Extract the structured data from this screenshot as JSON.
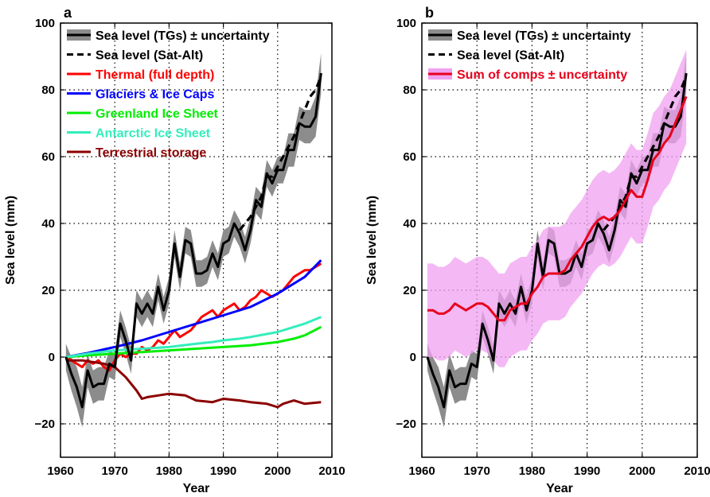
{
  "chart_data": [
    {
      "type": "line",
      "panel_label": "a",
      "xlabel": "Year",
      "ylabel": "Sea level (mm)",
      "xlim": [
        1960,
        2010
      ],
      "ylim": [
        -30,
        100
      ],
      "xticks": [
        1960,
        1970,
        1980,
        1990,
        2000,
        2010
      ],
      "yticks": [
        -20,
        0,
        20,
        40,
        60,
        80,
        100
      ],
      "grid": true,
      "legend_position": "top-left",
      "series": [
        {
          "name": "Sea level (TGs) ± uncertainty",
          "color": "#000000",
          "band_color": "#8c8c8c",
          "style": "solid",
          "x": [
            1961,
            1962,
            1963,
            1964,
            1965,
            1966,
            1967,
            1968,
            1969,
            1970,
            1971,
            1972,
            1973,
            1974,
            1975,
            1976,
            1977,
            1978,
            1979,
            1980,
            1981,
            1982,
            1983,
            1984,
            1985,
            1986,
            1987,
            1988,
            1989,
            1990,
            1991,
            1992,
            1993,
            1994,
            1995,
            1996,
            1997,
            1998,
            1999,
            2000,
            2001,
            2002,
            2003,
            2004,
            2005,
            2006,
            2007,
            2008
          ],
          "values": [
            0,
            -5,
            -9,
            -15,
            -4,
            -9,
            -8,
            -8,
            -2,
            -3,
            10,
            5,
            -1,
            16,
            13,
            16,
            13,
            21,
            14,
            20,
            34,
            24,
            35,
            34,
            25,
            25,
            26,
            31,
            27,
            34,
            35,
            40,
            37,
            32,
            38,
            47,
            45,
            55,
            52,
            56,
            56,
            62,
            62,
            70,
            69,
            69,
            72,
            85
          ],
          "uncertainty": [
            4,
            5,
            6,
            6,
            5,
            5,
            5,
            5,
            4,
            4,
            4,
            4,
            4,
            4,
            4,
            4,
            4,
            4,
            4,
            4,
            4,
            4,
            4,
            4,
            4,
            4,
            4,
            4,
            4,
            4,
            4,
            4,
            4,
            4,
            4,
            4,
            4,
            4,
            4,
            4,
            4,
            5,
            5,
            5,
            5,
            5,
            6,
            6
          ]
        },
        {
          "name": "Sea level (Sat-Alt)",
          "color": "#000000",
          "style": "dashed",
          "x": [
            1993,
            1994,
            1995,
            1996,
            1997,
            1998,
            1999,
            2000,
            2001,
            2002,
            2003,
            2004,
            2005,
            2006,
            2007,
            2008
          ],
          "values": [
            38,
            40,
            42,
            45,
            48,
            54,
            54,
            57,
            60,
            63,
            66,
            70,
            74,
            78,
            80,
            84
          ]
        },
        {
          "name": "Thermal (full depth)",
          "color": "#ff0000",
          "style": "solid",
          "x": [
            1961,
            1962,
            1963,
            1964,
            1965,
            1966,
            1967,
            1968,
            1969,
            1970,
            1971,
            1972,
            1973,
            1974,
            1975,
            1976,
            1977,
            1978,
            1979,
            1980,
            1981,
            1982,
            1983,
            1984,
            1985,
            1986,
            1987,
            1988,
            1989,
            1990,
            1991,
            1992,
            1993,
            1994,
            1995,
            1996,
            1997,
            1998,
            1999,
            2000,
            2001,
            2002,
            2003,
            2004,
            2005,
            2006,
            2007,
            2008
          ],
          "values": [
            0,
            -1,
            -2,
            -3,
            -1,
            -2,
            -1,
            -3,
            -4,
            -1,
            1,
            0,
            1,
            1,
            3,
            2,
            3,
            5,
            4,
            6,
            8,
            6,
            7,
            8,
            10,
            12,
            13,
            14,
            12,
            14,
            15,
            16,
            14,
            15,
            17,
            18,
            20,
            19,
            18,
            19,
            20,
            22,
            24,
            25,
            26,
            26,
            27,
            28
          ]
        },
        {
          "name": "Glaciers & Ice Caps",
          "color": "#0000ff",
          "style": "solid",
          "x": [
            1961,
            1965,
            1970,
            1975,
            1980,
            1985,
            1990,
            1995,
            2000,
            2005,
            2008
          ],
          "values": [
            0,
            1.2,
            3,
            5,
            7.5,
            10,
            12.5,
            15,
            19,
            24,
            29
          ]
        },
        {
          "name": "Greenland Ice Sheet",
          "color": "#00ee00",
          "style": "solid",
          "x": [
            1961,
            1965,
            1970,
            1975,
            1980,
            1985,
            1990,
            1995,
            2000,
            2003,
            2005,
            2008
          ],
          "values": [
            0,
            0.5,
            1,
            1.5,
            2,
            2.5,
            3,
            3.5,
            4.5,
            5.5,
            6.5,
            9
          ]
        },
        {
          "name": "Antarctic Ice Sheet",
          "color": "#33eebb",
          "style": "solid",
          "x": [
            1961,
            1965,
            1970,
            1975,
            1980,
            1985,
            1988,
            1990,
            1993,
            1995,
            2000,
            2003,
            2005,
            2008
          ],
          "values": [
            0,
            1,
            2,
            2.5,
            3,
            4,
            4.5,
            5,
            5.5,
            6,
            7.5,
            9,
            10,
            12
          ]
        },
        {
          "name": "Terrestrial storage",
          "color": "#8b0000",
          "style": "solid",
          "x": [
            1961,
            1964,
            1966,
            1968,
            1970,
            1972,
            1974,
            1975,
            1976,
            1978,
            1980,
            1983,
            1985,
            1988,
            1990,
            1993,
            1995,
            1998,
            2000,
            2001,
            2003,
            2005,
            2008
          ],
          "values": [
            -1,
            -1,
            -1.5,
            -2,
            -3,
            -6,
            -10,
            -12.5,
            -12,
            -11.5,
            -11,
            -11.5,
            -13,
            -13.5,
            -12.5,
            -13,
            -13.5,
            -14,
            -15,
            -14,
            -13,
            -14,
            -13.5
          ]
        }
      ]
    },
    {
      "type": "line",
      "panel_label": "b",
      "xlabel": "Year",
      "ylabel": "Sea level (mm)",
      "xlim": [
        1960,
        2010
      ],
      "ylim": [
        -30,
        100
      ],
      "xticks": [
        1960,
        1970,
        1980,
        1990,
        2000,
        2010
      ],
      "yticks": [
        -20,
        0,
        20,
        40,
        60,
        80,
        100
      ],
      "grid": true,
      "legend_position": "top-left",
      "series": [
        {
          "name": "Sea level (TGs) ± uncertainty",
          "color": "#000000",
          "band_color": "#8c8c8c",
          "style": "solid",
          "x": [
            1961,
            1962,
            1963,
            1964,
            1965,
            1966,
            1967,
            1968,
            1969,
            1970,
            1971,
            1972,
            1973,
            1974,
            1975,
            1976,
            1977,
            1978,
            1979,
            1980,
            1981,
            1982,
            1983,
            1984,
            1985,
            1986,
            1987,
            1988,
            1989,
            1990,
            1991,
            1992,
            1993,
            1994,
            1995,
            1996,
            1997,
            1998,
            1999,
            2000,
            2001,
            2002,
            2003,
            2004,
            2005,
            2006,
            2007,
            2008
          ],
          "values": [
            0,
            -5,
            -9,
            -15,
            -4,
            -9,
            -8,
            -8,
            -2,
            -3,
            10,
            5,
            -1,
            16,
            13,
            16,
            13,
            21,
            14,
            20,
            34,
            24,
            35,
            34,
            25,
            25,
            26,
            31,
            27,
            34,
            35,
            40,
            37,
            32,
            38,
            47,
            45,
            55,
            52,
            56,
            56,
            62,
            62,
            70,
            69,
            69,
            72,
            85
          ],
          "uncertainty": [
            4,
            5,
            6,
            6,
            5,
            5,
            5,
            5,
            4,
            4,
            4,
            4,
            4,
            4,
            4,
            4,
            4,
            4,
            4,
            4,
            4,
            4,
            4,
            4,
            4,
            4,
            4,
            4,
            4,
            4,
            4,
            4,
            4,
            4,
            4,
            4,
            4,
            4,
            4,
            4,
            4,
            5,
            5,
            5,
            5,
            5,
            6,
            6
          ]
        },
        {
          "name": "Sea level (Sat-Alt)",
          "color": "#000000",
          "style": "dashed",
          "x": [
            1993,
            1994,
            1995,
            1996,
            1997,
            1998,
            1999,
            2000,
            2001,
            2002,
            2003,
            2004,
            2005,
            2006,
            2007,
            2008
          ],
          "values": [
            38,
            40,
            42,
            45,
            48,
            54,
            54,
            57,
            60,
            63,
            66,
            70,
            74,
            78,
            80,
            84
          ]
        },
        {
          "name": "Sum of comps ± uncertainty",
          "color": "#e8001c",
          "band_color": "#f0a0f0",
          "style": "solid",
          "x": [
            1961,
            1962,
            1963,
            1964,
            1965,
            1966,
            1967,
            1968,
            1969,
            1970,
            1971,
            1972,
            1973,
            1974,
            1975,
            1976,
            1977,
            1978,
            1979,
            1980,
            1981,
            1982,
            1983,
            1984,
            1985,
            1986,
            1987,
            1988,
            1989,
            1990,
            1991,
            1992,
            1993,
            1994,
            1995,
            1996,
            1997,
            1998,
            1999,
            2000,
            2001,
            2002,
            2003,
            2004,
            2005,
            2006,
            2007,
            2008
          ],
          "values": [
            14,
            14,
            13,
            13,
            14,
            16,
            15,
            14,
            15,
            16,
            16,
            15,
            13,
            11,
            11,
            14,
            15,
            16,
            16,
            19,
            21,
            24,
            25,
            25,
            25,
            26,
            29,
            31,
            33,
            36,
            39,
            41,
            42,
            41,
            42,
            44,
            47,
            50,
            48,
            48,
            53,
            59,
            61,
            64,
            66,
            70,
            74,
            78
          ],
          "uncertainty": [
            14,
            14,
            14,
            14,
            14,
            14,
            14,
            14,
            14,
            14,
            14,
            14,
            14,
            14,
            14,
            14,
            14,
            14,
            14,
            14,
            14,
            14,
            14,
            14,
            14,
            14,
            14,
            14,
            14,
            14,
            14,
            14,
            14,
            14,
            14,
            14,
            14,
            14,
            14,
            14,
            14,
            14,
            14,
            14,
            14,
            14,
            14,
            14
          ]
        }
      ]
    }
  ]
}
